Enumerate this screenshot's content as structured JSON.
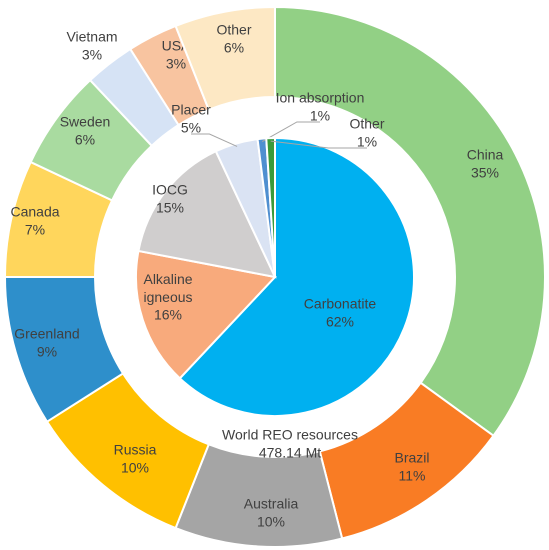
{
  "chart_data": [
    {
      "type": "donut",
      "annotation": [
        "World REO resources",
        "478.14 Mt"
      ],
      "categories": [
        "China",
        "Brazil",
        "Australia",
        "Russia",
        "Greenland",
        "Canada",
        "Sweden",
        "Vietnam",
        "USA",
        "Other"
      ],
      "values": [
        35,
        11,
        10,
        10,
        9,
        7,
        6,
        3,
        3,
        6
      ],
      "value_labels": [
        "35%",
        "11%",
        "10%",
        "10%",
        "9%",
        "7%",
        "6%",
        "3%",
        "3%",
        "6%"
      ],
      "colors": [
        "#92d085",
        "#f97c24",
        "#a5a5a5",
        "#ffc000",
        "#2e8fcb",
        "#ffd65c",
        "#a9dba0",
        "#d6e3f5",
        "#f8c4a0",
        "#fde8c4"
      ]
    },
    {
      "type": "pie",
      "categories": [
        "Carbonatite",
        "Alkaline igneous",
        "IOCG",
        "Placer",
        "Ion absorption",
        "Other"
      ],
      "values": [
        62,
        16,
        15,
        5,
        1,
        1
      ],
      "value_labels": [
        "62%",
        "16%",
        "15%",
        "5%",
        "1%",
        "1%"
      ],
      "colors": [
        "#00b0f0",
        "#f8aa7c",
        "#d0cece",
        "#dae3f3",
        "#4f8fd0",
        "#3a9a3a"
      ]
    }
  ]
}
